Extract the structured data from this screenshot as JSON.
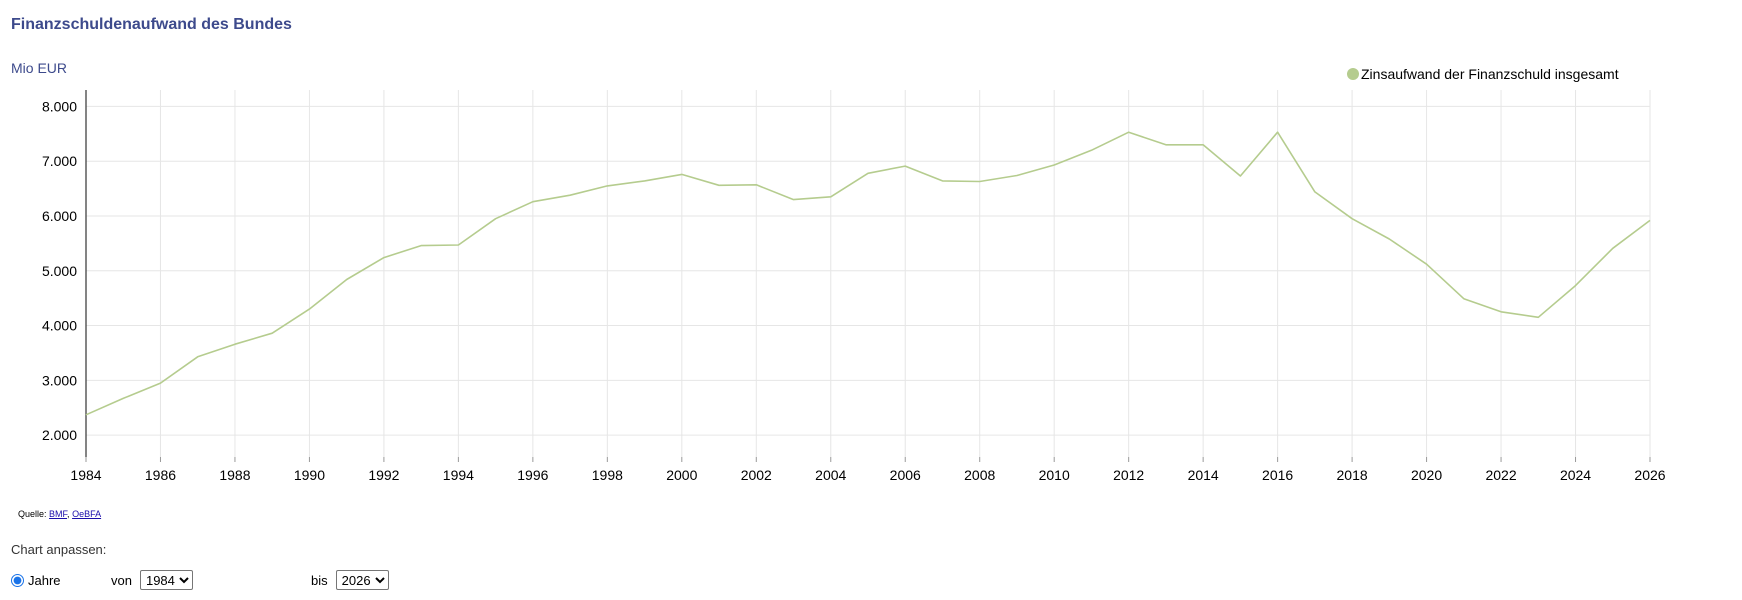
{
  "page": {
    "title": "Finanzschuldenaufwand des Bundes",
    "unit": "Mio EUR"
  },
  "source": {
    "prefix": "Quelle:",
    "links": [
      "BMF",
      "OeBFA"
    ],
    "separator": ","
  },
  "controls": {
    "customize_label": "Chart anpassen:",
    "radio_label": "Jahre",
    "from_label": "von",
    "to_label": "bis",
    "from_value": "1984",
    "to_value": "2026"
  },
  "chart_data": {
    "type": "line",
    "series": [
      {
        "name": "Zinsaufwand der Finanzschuld insgesamt",
        "color": "#b5cc8e",
        "x": [
          1984,
          1985,
          1986,
          1987,
          1988,
          1989,
          1990,
          1991,
          1992,
          1993,
          1994,
          1995,
          1996,
          1997,
          1998,
          1999,
          2000,
          2001,
          2002,
          2003,
          2004,
          2005,
          2006,
          2007,
          2008,
          2009,
          2010,
          2011,
          2012,
          2013,
          2014,
          2015,
          2016,
          2017,
          2018,
          2019,
          2020,
          2021,
          2022,
          2023,
          2024,
          2025,
          2026
        ],
        "values": [
          2370,
          2670,
          2950,
          3430,
          3660,
          3860,
          4300,
          4840,
          5240,
          5460,
          5470,
          5950,
          6260,
          6380,
          6550,
          6640,
          6760,
          6560,
          6570,
          6300,
          6350,
          6780,
          6910,
          6640,
          6630,
          6740,
          6930,
          7200,
          7530,
          7300,
          7300,
          6730,
          7530,
          6440,
          5950,
          5580,
          5120,
          4490,
          4250,
          4150,
          4730,
          5410,
          5920
        ]
      }
    ],
    "xlim": [
      1984,
      2026
    ],
    "ylim": [
      1600,
      8300
    ],
    "x_ticks": [
      "1984",
      "1986",
      "1988",
      "1990",
      "1992",
      "1994",
      "1996",
      "1998",
      "2000",
      "2002",
      "2004",
      "2006",
      "2008",
      "2010",
      "2012",
      "2014",
      "2016",
      "2018",
      "2020",
      "2022",
      "2024",
      "2026"
    ],
    "y_ticks": [
      "2.000",
      "3.000",
      "4.000",
      "5.000",
      "6.000",
      "7.000",
      "8.000"
    ],
    "y_tick_values": [
      2000,
      3000,
      4000,
      5000,
      6000,
      7000,
      8000
    ],
    "grid": true,
    "legend_position": "top-right"
  }
}
